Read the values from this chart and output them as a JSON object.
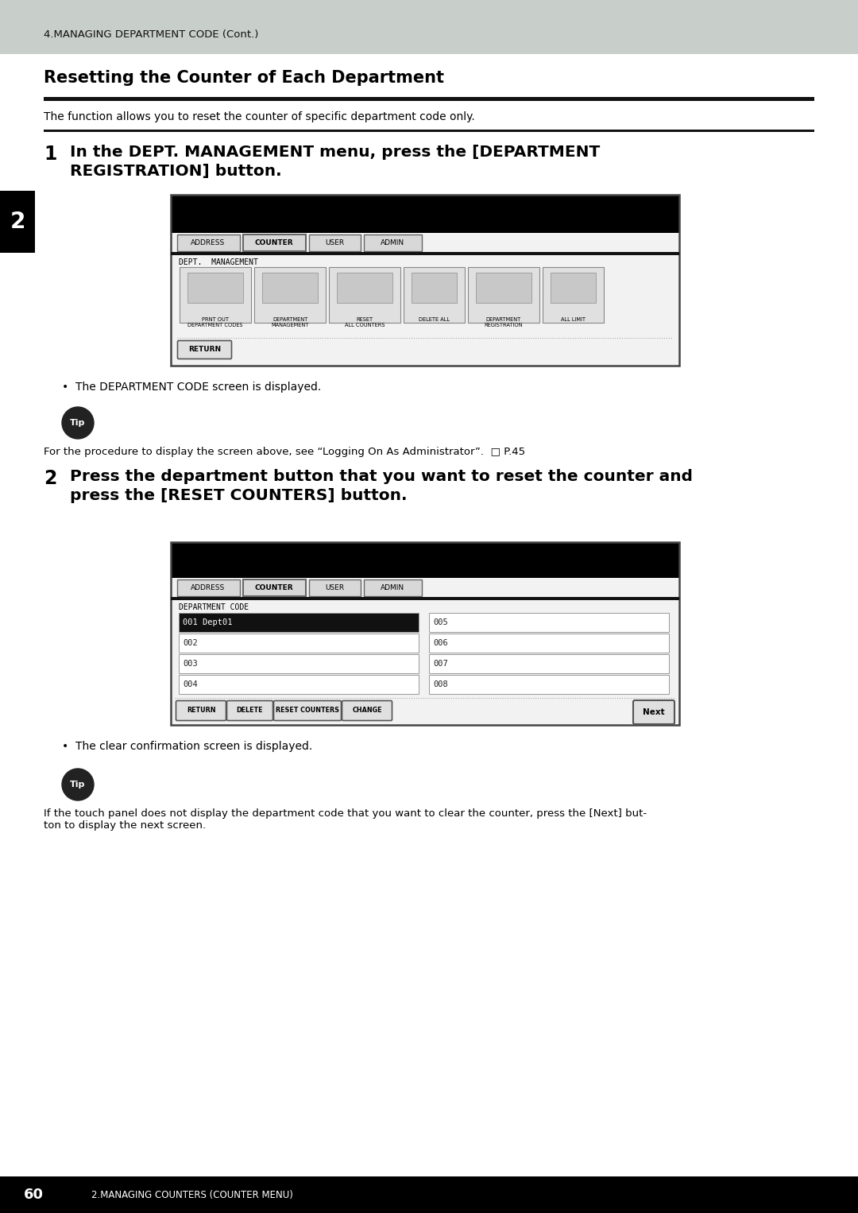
{
  "header_bg": "#c8ceca",
  "header_text": "4.MANAGING DEPARTMENT CODE (Cont.)",
  "page_bg": "#ffffff",
  "section_title": "Resetting the Counter of Each Department",
  "section_desc": "The function allows you to reset the counter of specific department code only.",
  "step1_text": "In the DEPT. MANAGEMENT menu, press the [DEPARTMENT\nREGISTRATION] button.",
  "step1_bullet": "The DEPARTMENT CODE screen is displayed.",
  "tip1_text": "For the procedure to display the screen above, see “Logging On As Administrator”.  □ P.45",
  "step2_text": "Press the department button that you want to reset the counter and\npress the [RESET COUNTERS] button.",
  "step2_bullet": "The clear confirmation screen is displayed.",
  "tip2_text": "If the touch panel does not display the department code that you want to clear the counter, press the [Next] but-\nton to display the next screen.",
  "side_tab_text": "2",
  "footer_num": "60",
  "footer_sub": "2.MANAGING COUNTERS (COUNTER MENU)"
}
